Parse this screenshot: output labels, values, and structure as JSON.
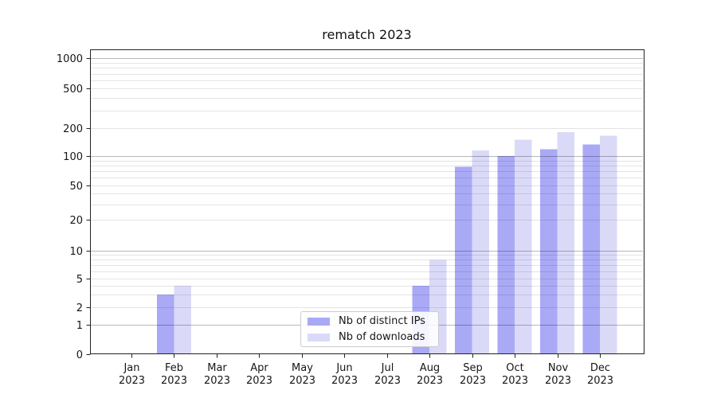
{
  "chart_data": {
    "type": "bar",
    "title": "rematch 2023",
    "categories": [
      {
        "month": "Jan",
        "year": "2023"
      },
      {
        "month": "Feb",
        "year": "2023"
      },
      {
        "month": "Mar",
        "year": "2023"
      },
      {
        "month": "Apr",
        "year": "2023"
      },
      {
        "month": "May",
        "year": "2023"
      },
      {
        "month": "Jun",
        "year": "2023"
      },
      {
        "month": "Jul",
        "year": "2023"
      },
      {
        "month": "Aug",
        "year": "2023"
      },
      {
        "month": "Sep",
        "year": "2023"
      },
      {
        "month": "Oct",
        "year": "2023"
      },
      {
        "month": "Nov",
        "year": "2023"
      },
      {
        "month": "Dec",
        "year": "2023"
      }
    ],
    "series": [
      {
        "name": "Nb of distinct IPs",
        "color": "#a9a9f6",
        "values": [
          0,
          3,
          0,
          0,
          0,
          0,
          0,
          4,
          78,
          100,
          118,
          133
        ]
      },
      {
        "name": "Nb of downloads",
        "color": "#dadaf8",
        "values": [
          0,
          4,
          0,
          0,
          0,
          0,
          0,
          8,
          115,
          150,
          182,
          165
        ]
      }
    ],
    "yscale": "symlog",
    "yticks": [
      0,
      1,
      2,
      5,
      10,
      20,
      50,
      100,
      200,
      500,
      1000
    ],
    "ylim": [
      0,
      1000
    ],
    "grid": "horizontal major and log-minor gridlines, drawn over bars",
    "legend_position": "lower center (inside axes)"
  },
  "colors": {
    "major_gridline_on_white": "#b7b7b7",
    "minor_gridline_on_white": "#e4e4e4",
    "axis_spine": "#222222",
    "text": "#161616"
  }
}
